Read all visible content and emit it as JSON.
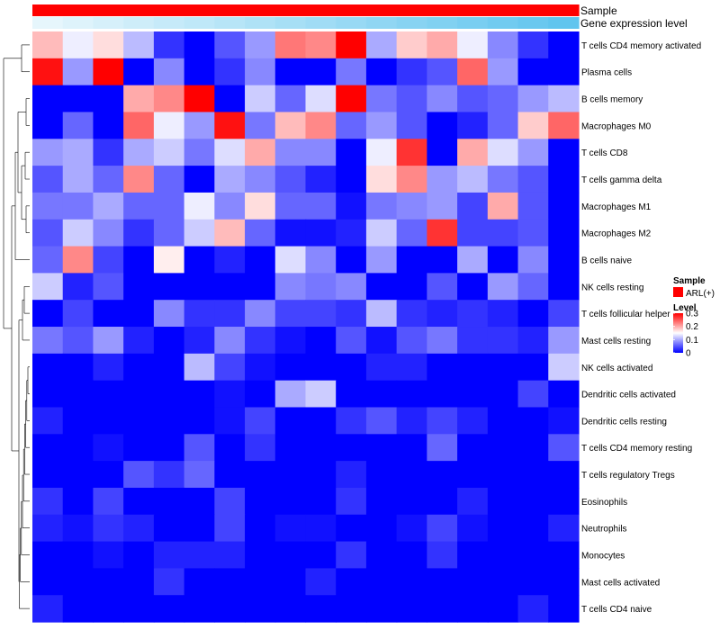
{
  "chart_data": {
    "type": "heatmap",
    "title": "",
    "annotation_tracks": [
      {
        "name": "Sample",
        "values": [
          "ARL(+)",
          "ARL(+)",
          "ARL(+)",
          "ARL(+)",
          "ARL(+)",
          "ARL(+)",
          "ARL(+)",
          "ARL(+)",
          "ARL(+)",
          "ARL(+)",
          "ARL(+)",
          "ARL(+)",
          "ARL(+)",
          "ARL(+)",
          "ARL(+)",
          "ARL(+)",
          "ARL(+)",
          "ARL(+)"
        ],
        "color": "#ff0000"
      },
      {
        "name": "Gene expression level",
        "values": [
          0.0,
          0.06,
          0.12,
          0.18,
          0.24,
          0.29,
          0.35,
          0.41,
          0.47,
          0.53,
          0.59,
          0.65,
          0.71,
          0.76,
          0.82,
          0.88,
          0.94,
          1.0
        ],
        "color_low": "#e6f6fc",
        "color_high": "#61c5ee"
      }
    ],
    "rows": [
      "T cells CD4 memory activated",
      "Plasma cells",
      "B cells memory",
      "Macrophages M0",
      "T cells CD8",
      "T cells gamma delta",
      "Macrophages M1",
      "Macrophages M2",
      "B cells naive",
      "NK cells resting",
      "T cells follicular helper",
      "Mast cells resting",
      "NK cells activated",
      "Dendritic cells activated",
      "Dendritic cells resting",
      "T cells CD4 memory resting",
      "T cells regulatory  Tregs",
      "Eosinophils",
      "Neutrophils",
      "Monocytes",
      "Mast cells activated",
      "T cells CD4 naive"
    ],
    "columns": 18,
    "values": [
      [
        0.19,
        0.14,
        0.17,
        0.11,
        0.03,
        0.0,
        0.05,
        0.09,
        0.23,
        0.22,
        0.3,
        0.1,
        0.18,
        0.2,
        0.14,
        0.08,
        0.03,
        0.0
      ],
      [
        0.29,
        0.09,
        0.3,
        0.0,
        0.08,
        0.0,
        0.03,
        0.08,
        0.0,
        0.0,
        0.07,
        0.0,
        0.03,
        0.05,
        0.24,
        0.09,
        0.0,
        0.0
      ],
      [
        0.0,
        0.0,
        0.0,
        0.2,
        0.22,
        0.3,
        0.0,
        0.12,
        0.06,
        0.13,
        0.3,
        0.07,
        0.05,
        0.08,
        0.05,
        0.06,
        0.09,
        0.11
      ],
      [
        0.0,
        0.06,
        0.0,
        0.24,
        0.14,
        0.09,
        0.29,
        0.07,
        0.19,
        0.22,
        0.06,
        0.09,
        0.05,
        0.0,
        0.02,
        0.06,
        0.18,
        0.24
      ],
      [
        0.09,
        0.1,
        0.03,
        0.1,
        0.12,
        0.07,
        0.13,
        0.2,
        0.08,
        0.08,
        0.0,
        0.14,
        0.27,
        0.0,
        0.2,
        0.13,
        0.09,
        0.0
      ],
      [
        0.05,
        0.1,
        0.06,
        0.22,
        0.06,
        0.0,
        0.1,
        0.08,
        0.05,
        0.02,
        0.0,
        0.17,
        0.22,
        0.09,
        0.11,
        0.07,
        0.05,
        0.0
      ],
      [
        0.07,
        0.07,
        0.1,
        0.06,
        0.06,
        0.14,
        0.08,
        0.17,
        0.06,
        0.06,
        0.01,
        0.07,
        0.08,
        0.09,
        0.04,
        0.2,
        0.05,
        0.0
      ],
      [
        0.05,
        0.12,
        0.08,
        0.03,
        0.06,
        0.12,
        0.19,
        0.06,
        0.01,
        0.01,
        0.02,
        0.12,
        0.06,
        0.27,
        0.04,
        0.04,
        0.05,
        0.0
      ],
      [
        0.06,
        0.22,
        0.04,
        0.0,
        0.16,
        0.0,
        0.02,
        0.0,
        0.13,
        0.08,
        0.0,
        0.09,
        0.0,
        0.0,
        0.1,
        0.0,
        0.08,
        0.0
      ],
      [
        0.12,
        0.02,
        0.05,
        0.0,
        0.0,
        0.0,
        0.0,
        0.0,
        0.08,
        0.07,
        0.08,
        0.0,
        0.0,
        0.05,
        0.0,
        0.09,
        0.06,
        0.0
      ],
      [
        0.0,
        0.04,
        0.0,
        0.0,
        0.08,
        0.03,
        0.03,
        0.08,
        0.04,
        0.04,
        0.03,
        0.11,
        0.03,
        0.02,
        0.03,
        0.02,
        0.0,
        0.04
      ],
      [
        0.07,
        0.05,
        0.09,
        0.02,
        0.0,
        0.02,
        0.08,
        0.03,
        0.01,
        0.0,
        0.05,
        0.01,
        0.05,
        0.07,
        0.03,
        0.03,
        0.02,
        0.09
      ],
      [
        0.0,
        0.0,
        0.02,
        0.0,
        0.0,
        0.11,
        0.04,
        0.01,
        0.0,
        0.0,
        0.0,
        0.02,
        0.02,
        0.0,
        0.0,
        0.0,
        0.0,
        0.12
      ],
      [
        0.0,
        0.0,
        0.0,
        0.0,
        0.0,
        0.0,
        0.01,
        0.0,
        0.1,
        0.12,
        0.0,
        0.0,
        0.0,
        0.0,
        0.0,
        0.0,
        0.04,
        0.0
      ],
      [
        0.02,
        0.0,
        0.0,
        0.0,
        0.0,
        0.0,
        0.01,
        0.04,
        0.0,
        0.0,
        0.03,
        0.05,
        0.02,
        0.04,
        0.02,
        0.0,
        0.0,
        0.01
      ],
      [
        0.0,
        0.0,
        0.01,
        0.0,
        0.0,
        0.05,
        0.0,
        0.03,
        0.0,
        0.0,
        0.0,
        0.0,
        0.0,
        0.06,
        0.0,
        0.0,
        0.0,
        0.05
      ],
      [
        0.0,
        0.0,
        0.0,
        0.05,
        0.03,
        0.06,
        0.0,
        0.0,
        0.0,
        0.0,
        0.02,
        0.0,
        0.0,
        0.0,
        0.0,
        0.0,
        0.0,
        0.0
      ],
      [
        0.03,
        0.0,
        0.04,
        0.0,
        0.0,
        0.0,
        0.04,
        0.0,
        0.0,
        0.0,
        0.03,
        0.0,
        0.0,
        0.0,
        0.02,
        0.0,
        0.0,
        0.0
      ],
      [
        0.02,
        0.01,
        0.03,
        0.02,
        0.0,
        0.0,
        0.04,
        0.0,
        0.01,
        0.01,
        0.0,
        0.0,
        0.01,
        0.04,
        0.01,
        0.0,
        0.0,
        0.02
      ],
      [
        0.0,
        0.0,
        0.01,
        0.0,
        0.02,
        0.02,
        0.02,
        0.0,
        0.0,
        0.0,
        0.03,
        0.0,
        0.0,
        0.03,
        0.0,
        0.0,
        0.0,
        0.0
      ],
      [
        0.0,
        0.0,
        0.0,
        0.0,
        0.03,
        0.0,
        0.0,
        0.0,
        0.0,
        0.02,
        0.0,
        0.0,
        0.0,
        0.0,
        0.0,
        0.0,
        0.0,
        0.0
      ],
      [
        0.02,
        0.0,
        0.0,
        0.0,
        0.0,
        0.0,
        0.0,
        0.0,
        0.0,
        0.0,
        0.0,
        0.0,
        0.0,
        0.0,
        0.0,
        0.0,
        0.02,
        0.0
      ]
    ],
    "row_dendrogram": true,
    "color_scale": {
      "low": "#0000ff",
      "mid": "#ffffff",
      "high": "#ff0000",
      "range": [
        0,
        0.3
      ]
    },
    "legends": {
      "sample": {
        "title": "Sample",
        "entries": [
          {
            "label": "ARL(+)",
            "color": "#ff0000"
          }
        ]
      },
      "level": {
        "title": "Level",
        "ticks": [
          "0.3",
          "0.2",
          "0.1",
          "0"
        ]
      }
    }
  }
}
